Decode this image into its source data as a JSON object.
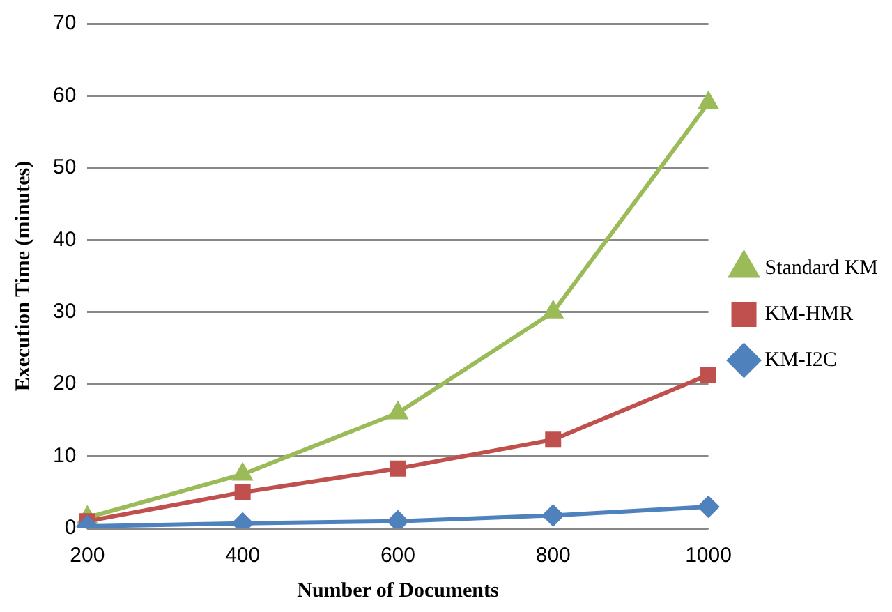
{
  "chart_data": {
    "type": "line",
    "xlabel": "Number of Documents",
    "ylabel": "Execution Time (minutes)",
    "categories": [
      "200",
      "400",
      "600",
      "800",
      "1000"
    ],
    "series": [
      {
        "name": "Standard KM",
        "color": "#9bbb59",
        "marker": "triangle",
        "values": [
          1.5,
          7.5,
          16,
          30,
          59
        ]
      },
      {
        "name": "KM-HMR",
        "color": "#c0504d",
        "marker": "square",
        "values": [
          1,
          5,
          8.3,
          12.3,
          21.3
        ]
      },
      {
        "name": "KM-I2C",
        "color": "#4f81bd",
        "marker": "diamond",
        "values": [
          0.3,
          0.7,
          1,
          1.8,
          3
        ]
      }
    ],
    "ylim": [
      0,
      70
    ],
    "yticks": [
      0,
      10,
      20,
      30,
      40,
      50,
      60,
      70
    ],
    "grid": "y",
    "legend": "right"
  }
}
